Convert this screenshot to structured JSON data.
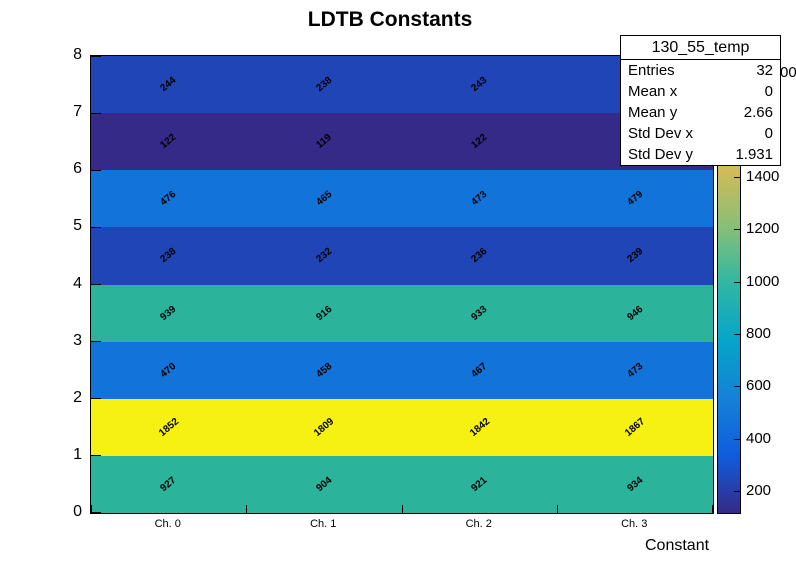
{
  "title": "LDTB Constants",
  "xlabel": "Constant",
  "stats": {
    "title": "130_55_temp",
    "rows": [
      {
        "label": "Entries",
        "value": "32"
      },
      {
        "label": "Mean x",
        "value": "0"
      },
      {
        "label": "Mean y",
        "value": "2.66"
      },
      {
        "label": "Std Dev x",
        "value": "0"
      },
      {
        "label": "Std Dev y",
        "value": "1.931"
      }
    ]
  },
  "chart_data": {
    "type": "heatmap",
    "title": "LDTB Constants",
    "xlabel": "Constant",
    "x_categories": [
      "Ch. 0",
      "Ch. 1",
      "Ch. 2",
      "Ch. 3"
    ],
    "y_ticks": [
      0,
      1,
      2,
      3,
      4,
      5,
      6,
      7,
      8
    ],
    "ylim": [
      0,
      8
    ],
    "zmin": 119,
    "zmax": 1867,
    "values_rows_bottom_to_top": [
      [
        927,
        904,
        921,
        934
      ],
      [
        1852,
        1809,
        1842,
        1867
      ],
      [
        470,
        458,
        467,
        473
      ],
      [
        939,
        916,
        933,
        946
      ],
      [
        238,
        232,
        236,
        239
      ],
      [
        476,
        465,
        473,
        479
      ],
      [
        122,
        119,
        122,
        122
      ],
      [
        244,
        238,
        243,
        null
      ]
    ],
    "row_colors": [
      "#2bb39c",
      "#f7f112",
      "#1273d9",
      "#2bb39c",
      "#2045b6",
      "#1273d9",
      "#352a87",
      "#2045b6"
    ],
    "palette_stops": [
      "#352a87",
      "#0f5cdd",
      "#1481d6",
      "#06a4ca",
      "#2eb7a4",
      "#87bf77",
      "#d1bb59",
      "#fec832",
      "#f9fb0e"
    ],
    "colorbar_ticks": [
      200,
      400,
      600,
      800,
      1000,
      1200,
      1400
    ],
    "colorbar_clipped_top_label": "00",
    "colorbar_clipped_top_value": 1800
  }
}
